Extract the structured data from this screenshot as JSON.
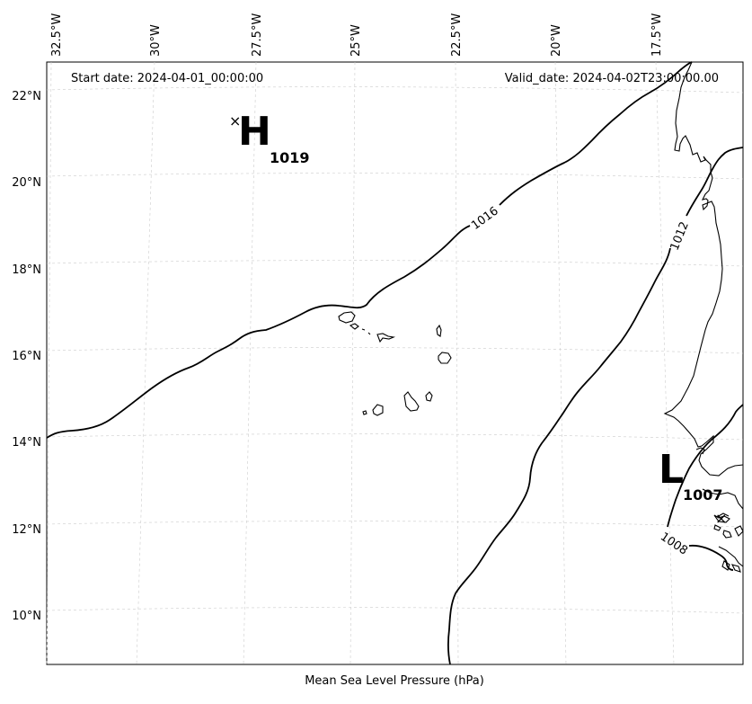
{
  "header": {
    "start_date": "Start date: 2024-04-01_00:00:00",
    "valid_date": "Valid_date: 2024-04-02T23:00:00.00"
  },
  "caption": "Mean Sea Level Pressure (hPa)",
  "longitude_ticks": [
    "32.5°W",
    "30°W",
    "27.5°W",
    "25°W",
    "22.5°W",
    "20°W",
    "17.5°W"
  ],
  "latitude_ticks": [
    "22°N",
    "20°N",
    "18°N",
    "16°N",
    "14°N",
    "12°N",
    "10°N"
  ],
  "isobars": [
    {
      "value": 1016,
      "label": "1016"
    },
    {
      "value": 1012,
      "label": "1012"
    },
    {
      "value": 1008,
      "label": "1008"
    }
  ],
  "pressure_centers": [
    {
      "type": "high",
      "letter": "H",
      "value": "1019",
      "marker": "×"
    },
    {
      "type": "low",
      "letter": "L",
      "value": "1007",
      "marker": "×"
    }
  ],
  "colors": {
    "contour": "#000000",
    "coastline": "#000000",
    "gridline": "#cccccc",
    "background": "#ffffff"
  }
}
